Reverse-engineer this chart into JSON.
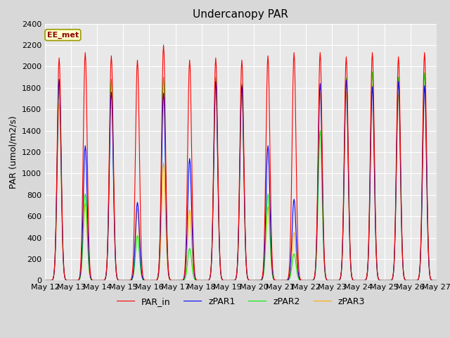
{
  "title": "Undercanopy PAR",
  "ylabel": "PAR (umol/m2/s)",
  "annotation": "EE_met",
  "ylim": [
    0,
    2400
  ],
  "yticks": [
    0,
    200,
    400,
    600,
    800,
    1000,
    1200,
    1400,
    1600,
    1800,
    2000,
    2200,
    2400
  ],
  "colors": {
    "PAR_in": "#ff0000",
    "zPAR1": "#0000ff",
    "zPAR2": "#00ee00",
    "zPAR3": "#ffaa00"
  },
  "bg_color": "#d8d8d8",
  "plot_bg_color": "#e8e8e8",
  "title_fontsize": 11,
  "label_fontsize": 9,
  "tick_fontsize": 8,
  "peaks_par_in": [
    2080,
    2130,
    2100,
    2060,
    2200,
    2060,
    2080,
    2060,
    2100,
    2130,
    2130,
    2090,
    2130,
    2090,
    2130
  ],
  "peaks_zpar1": [
    1880,
    1260,
    1760,
    730,
    1750,
    1140,
    1860,
    1820,
    1260,
    760,
    1840,
    1870,
    1810,
    1860,
    1820
  ],
  "peaks_zpar2": [
    1880,
    810,
    1880,
    420,
    1900,
    300,
    1900,
    1840,
    810,
    250,
    1400,
    1890,
    1950,
    1900,
    1940
  ],
  "peaks_zpar3": [
    1660,
    720,
    1880,
    670,
    1100,
    660,
    1820,
    1760,
    690,
    450,
    1760,
    1760,
    1820,
    1740,
    1820
  ]
}
